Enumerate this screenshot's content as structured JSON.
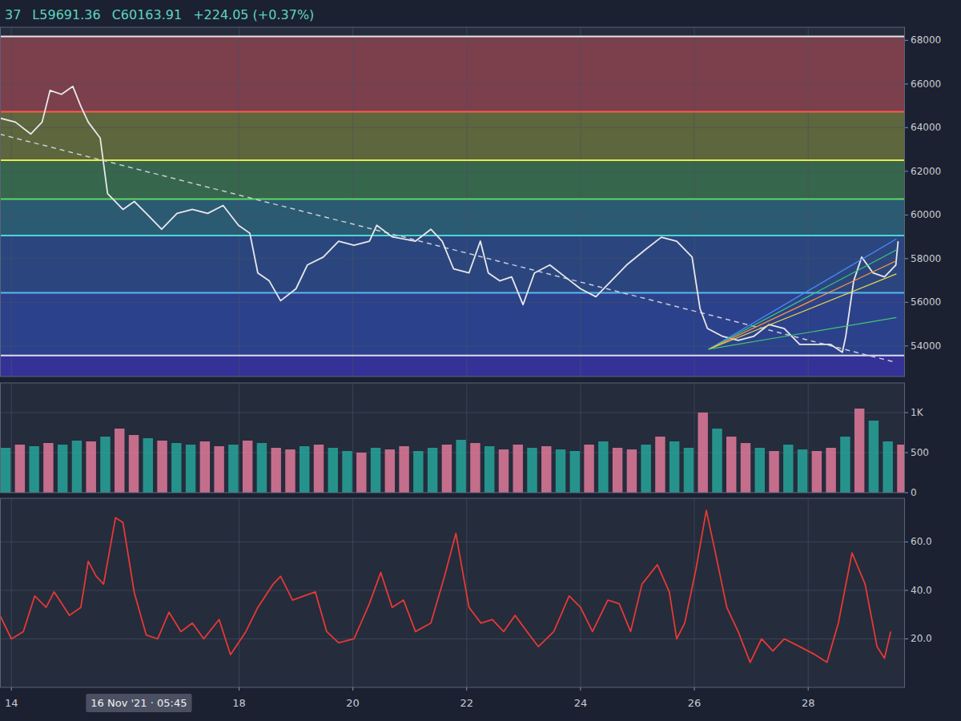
{
  "header": {
    "ohlc": [
      "37",
      "L59691.36",
      "C60163.91",
      "+224.05 (+0.37%)"
    ]
  },
  "chart_data": [
    {
      "type": "line",
      "xlim": [
        13.8,
        29.7
      ],
      "xticks": [
        14,
        18,
        20,
        22,
        24,
        26,
        28
      ],
      "ylim": [
        52600,
        68600
      ],
      "yticks": [
        54000,
        56000,
        58000,
        60000,
        62000,
        64000,
        66000,
        68000
      ],
      "grid": true,
      "tick_labels": "y",
      "series": [
        {
          "color": "#e8e8ea",
          "x": [
            13.8,
            14.07,
            14.34,
            14.54,
            14.68,
            14.88,
            15.08,
            15.22,
            15.35,
            15.56,
            15.69,
            15.96,
            16.16,
            16.37,
            16.64,
            16.91,
            17.18,
            17.45,
            17.72,
            17.99,
            18.19,
            18.33,
            18.53,
            18.73,
            19.0,
            19.2,
            19.48,
            19.75,
            20.02,
            20.29,
            20.42,
            20.69,
            21.1,
            21.37,
            21.57,
            21.77,
            22.04,
            22.24,
            22.38,
            22.58,
            22.79,
            22.99,
            23.19,
            23.46,
            23.73,
            24.0,
            24.27,
            24.54,
            24.81,
            25.15,
            25.42,
            25.69,
            25.96,
            26.1,
            26.23,
            26.5,
            26.77,
            27.04,
            27.31,
            27.58,
            27.85,
            28.12,
            28.39,
            28.6,
            28.66,
            28.8,
            28.94,
            29.14,
            29.34,
            29.54,
            29.58
          ],
          "values": [
            64436,
            64255,
            63709,
            64255,
            65709,
            65527,
            65890,
            64980,
            64255,
            63527,
            60982,
            60255,
            60618,
            60073,
            59345,
            60073,
            60255,
            60073,
            60436,
            59527,
            59164,
            57345,
            56982,
            56073,
            56618,
            57709,
            58073,
            58800,
            58618,
            58800,
            59527,
            59000,
            58800,
            59345,
            58800,
            57527,
            57345,
            58800,
            57345,
            56982,
            57164,
            55891,
            57345,
            57709,
            57164,
            56618,
            56255,
            56982,
            57709,
            58436,
            58982,
            58800,
            58073,
            55709,
            54800,
            54436,
            54255,
            54436,
            54982,
            54800,
            54073,
            54073,
            54073,
            53709,
            54436,
            56982,
            58073,
            57345,
            57164,
            57709,
            58800
          ]
        }
      ],
      "levels": [
        {
          "value": 68180,
          "color": "#e4e4e8"
        },
        {
          "value": 64727,
          "color": "#ff5a48"
        },
        {
          "value": 62509,
          "color": "#e8e84a"
        },
        {
          "value": 60727,
          "color": "#5cd860"
        },
        {
          "value": 59055,
          "color": "#4ad6d6"
        },
        {
          "value": 56436,
          "color": "#5ab8f0"
        },
        {
          "value": 53564,
          "color": "#dcdcf0"
        }
      ],
      "trend_line": {
        "x": [
          13.8,
          29.55
        ],
        "values": [
          63700,
          53240
        ]
      },
      "fan": [
        {
          "x": [
            26.25,
            29.55
          ],
          "values": [
            53850,
            58900
          ],
          "color": "#4a8cff"
        },
        {
          "x": [
            26.25,
            29.55
          ],
          "values": [
            53850,
            58400
          ],
          "color": "#3cc878"
        },
        {
          "x": [
            26.25,
            29.55
          ],
          "values": [
            53850,
            57900
          ],
          "color": "#ff9a3c"
        },
        {
          "x": [
            26.25,
            29.55
          ],
          "values": [
            53850,
            57300
          ],
          "color": "#e8d84a"
        },
        {
          "x": [
            26.25,
            29.55
          ],
          "values": [
            53850,
            55300
          ],
          "color": "#3cc878"
        }
      ]
    },
    {
      "type": "bar",
      "xlim": [
        13.8,
        29.7
      ],
      "xticks": [
        14,
        18,
        20,
        22,
        24,
        26,
        28
      ],
      "ylim": [
        0,
        1370
      ],
      "yticks": [
        0,
        500,
        {
          "value": 1000,
          "label": "1K"
        }
      ],
      "grid": true,
      "tick_labels": "y",
      "series": [
        {
          "x": [
            13.9,
            14.15,
            14.4,
            14.65,
            14.9,
            15.15,
            15.4,
            15.65,
            15.9,
            16.15,
            16.4,
            16.65,
            16.9,
            17.15,
            17.4,
            17.65,
            17.9,
            18.15,
            18.4,
            18.65,
            18.9,
            19.15,
            19.4,
            19.65,
            19.9,
            20.15,
            20.4,
            20.65,
            20.9,
            21.15,
            21.4,
            21.65,
            21.9,
            22.15,
            22.4,
            22.65,
            22.9,
            23.15,
            23.4,
            23.65,
            23.9,
            24.15,
            24.4,
            24.65,
            24.9,
            25.15,
            25.4,
            25.65,
            25.9,
            26.15,
            26.4,
            26.65,
            26.9,
            27.15,
            27.4,
            27.65,
            27.9,
            28.15,
            28.4,
            28.65,
            28.9,
            29.15,
            29.4,
            29.65
          ],
          "values": [
            560,
            600,
            580,
            620,
            600,
            650,
            640,
            700,
            800,
            720,
            680,
            650,
            620,
            600,
            640,
            580,
            600,
            650,
            620,
            560,
            540,
            580,
            600,
            560,
            520,
            500,
            560,
            540,
            580,
            520,
            560,
            600,
            660,
            620,
            580,
            540,
            600,
            560,
            580,
            540,
            520,
            600,
            640,
            560,
            540,
            600,
            700,
            640,
            560,
            1000,
            800,
            700,
            620,
            560,
            520,
            600,
            540,
            520,
            560,
            700,
            1050,
            900,
            640,
            600
          ],
          "colors": [
            "#26a69a",
            "#e07a9a",
            "#26a69a",
            "#e07a9a",
            "#26a69a",
            "#26a69a",
            "#e07a9a",
            "#26a69a",
            "#e07a9a",
            "#e07a9a",
            "#26a69a",
            "#e07a9a",
            "#26a69a",
            "#26a69a",
            "#e07a9a",
            "#e07a9a",
            "#26a69a",
            "#e07a9a",
            "#26a69a",
            "#e07a9a",
            "#e07a9a",
            "#26a69a",
            "#e07a9a",
            "#26a69a",
            "#26a69a",
            "#e07a9a",
            "#26a69a",
            "#e07a9a",
            "#e07a9a",
            "#26a69a",
            "#26a69a",
            "#e07a9a",
            "#26a69a",
            "#e07a9a",
            "#26a69a",
            "#e07a9a",
            "#e07a9a",
            "#26a69a",
            "#e07a9a",
            "#26a69a",
            "#26a69a",
            "#e07a9a",
            "#26a69a",
            "#e07a9a",
            "#e07a9a",
            "#26a69a",
            "#e07a9a",
            "#26a69a",
            "#26a69a",
            "#e07a9a",
            "#26a69a",
            "#e07a9a",
            "#e07a9a",
            "#26a69a",
            "#e07a9a",
            "#26a69a",
            "#26a69a",
            "#e07a9a",
            "#e07a9a",
            "#26a69a",
            "#e07a9a",
            "#26a69a",
            "#26a69a",
            "#e07a9a"
          ]
        }
      ]
    },
    {
      "type": "line",
      "xlim": [
        13.8,
        29.7
      ],
      "xticks": [
        14,
        18,
        20,
        22,
        24,
        26,
        28
      ],
      "ylim": [
        0,
        78
      ],
      "yticks": [
        {
          "value": 20,
          "label": "20.0"
        },
        {
          "value": 40,
          "label": "40.0"
        },
        {
          "value": 60,
          "label": "60.0"
        }
      ],
      "grid": true,
      "series": [
        {
          "color": "#e53935",
          "x": [
            13.8,
            14.0,
            14.21,
            14.41,
            14.61,
            14.75,
            15.02,
            15.22,
            15.35,
            15.49,
            15.62,
            15.83,
            15.96,
            16.16,
            16.37,
            16.57,
            16.77,
            16.98,
            17.18,
            17.38,
            17.65,
            17.85,
            18.12,
            18.33,
            18.6,
            18.73,
            18.94,
            19.14,
            19.34,
            19.54,
            19.75,
            20.02,
            20.29,
            20.49,
            20.69,
            20.89,
            21.1,
            21.37,
            21.61,
            21.81,
            22.04,
            22.25,
            22.45,
            22.65,
            22.85,
            23.06,
            23.26,
            23.53,
            23.8,
            24.0,
            24.21,
            24.48,
            24.68,
            24.88,
            25.08,
            25.35,
            25.56,
            25.69,
            25.83,
            26.03,
            26.21,
            26.37,
            26.57,
            26.77,
            26.98,
            27.18,
            27.38,
            27.58,
            27.85,
            28.12,
            28.33,
            28.53,
            28.77,
            29.0,
            29.21,
            29.34,
            29.45
          ],
          "values": [
            29.7,
            20,
            23,
            37.7,
            33,
            39.4,
            29.7,
            33,
            52,
            45.8,
            42.6,
            70,
            68,
            39,
            21.6,
            20,
            31,
            23,
            26.5,
            20,
            28,
            13.5,
            23,
            33,
            42.6,
            45.8,
            36,
            37.7,
            39.4,
            23,
            18.4,
            20,
            34.5,
            47.4,
            33,
            36,
            23,
            26.5,
            45.8,
            63.5,
            33,
            26.5,
            28,
            23,
            29.7,
            23,
            16.8,
            23,
            37.7,
            33,
            23,
            36,
            34.5,
            23,
            42.6,
            50.6,
            39.4,
            20,
            26.5,
            49,
            73,
            55.5,
            33,
            23,
            10.3,
            20,
            15,
            20,
            16.8,
            13.5,
            10.3,
            26.5,
            55.5,
            42.6,
            16.8,
            12,
            23
          ]
        }
      ],
      "crosshair": {
        "x": 16.24,
        "label": "16 Nov '21 · 05:45"
      }
    }
  ]
}
